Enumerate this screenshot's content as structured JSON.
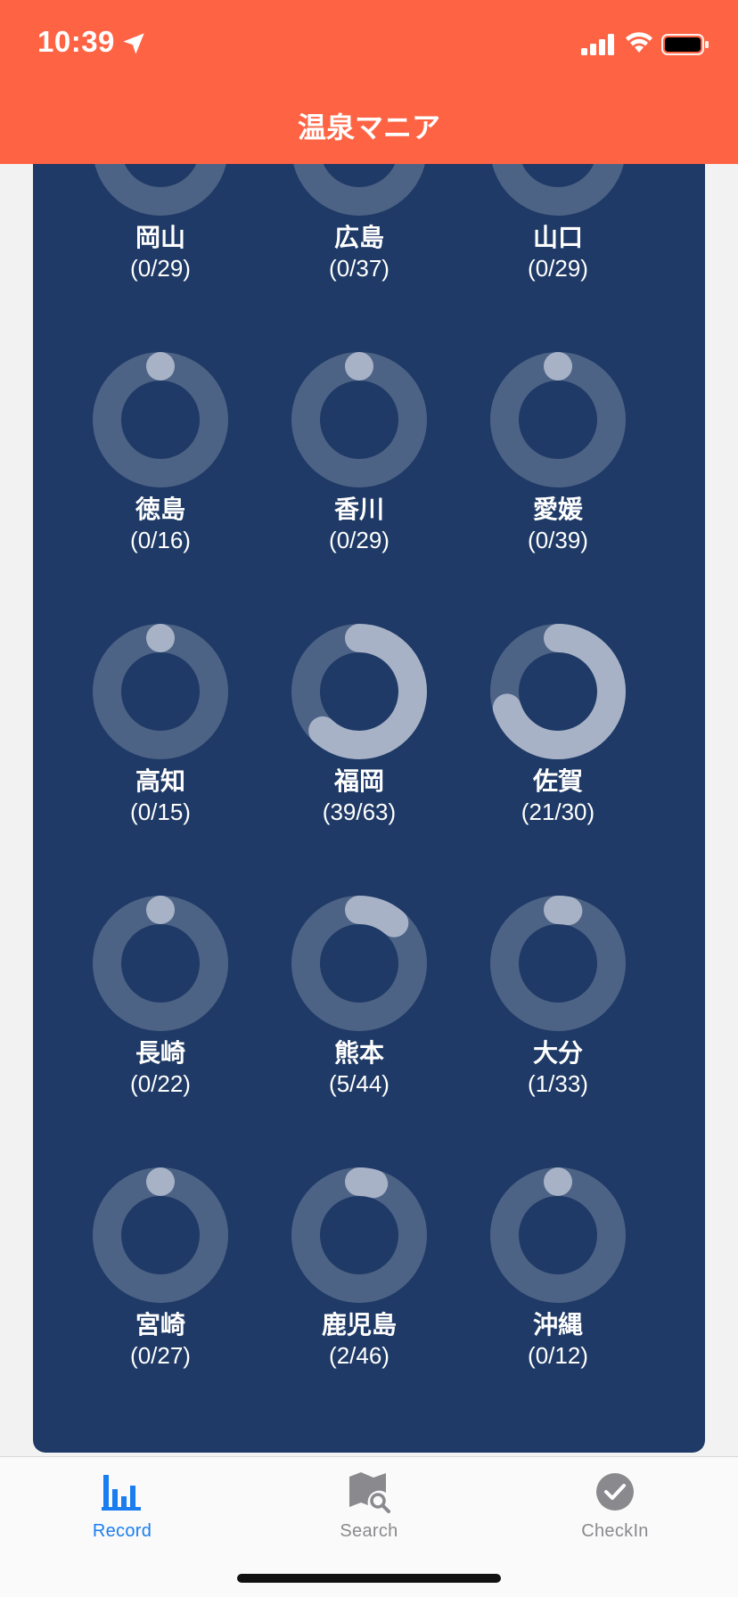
{
  "status_bar": {
    "time": "10:39"
  },
  "app": {
    "title": "温泉マニア"
  },
  "prefectures": [
    {
      "name": "岡山",
      "count": "(0/29)",
      "visited": 0,
      "total": 29
    },
    {
      "name": "広島",
      "count": "(0/37)",
      "visited": 0,
      "total": 37
    },
    {
      "name": "山口",
      "count": "(0/29)",
      "visited": 0,
      "total": 29
    },
    {
      "name": "徳島",
      "count": "(0/16)",
      "visited": 0,
      "total": 16
    },
    {
      "name": "香川",
      "count": "(0/29)",
      "visited": 0,
      "total": 29
    },
    {
      "name": "愛媛",
      "count": "(0/39)",
      "visited": 0,
      "total": 39
    },
    {
      "name": "高知",
      "count": "(0/15)",
      "visited": 0,
      "total": 15
    },
    {
      "name": "福岡",
      "count": "(39/63)",
      "visited": 39,
      "total": 63
    },
    {
      "name": "佐賀",
      "count": "(21/30)",
      "visited": 21,
      "total": 30
    },
    {
      "name": "長崎",
      "count": "(0/22)",
      "visited": 0,
      "total": 22
    },
    {
      "name": "熊本",
      "count": "(5/44)",
      "visited": 5,
      "total": 44
    },
    {
      "name": "大分",
      "count": "(1/33)",
      "visited": 1,
      "total": 33
    },
    {
      "name": "宮崎",
      "count": "(0/27)",
      "visited": 0,
      "total": 27
    },
    {
      "name": "鹿児島",
      "count": "(2/46)",
      "visited": 2,
      "total": 46
    },
    {
      "name": "沖縄",
      "count": "(0/12)",
      "visited": 0,
      "total": 12
    }
  ],
  "colors": {
    "header_bg": "#fe6344",
    "card_bg": "#1f3a66",
    "ring_track": "#4d6385",
    "ring_progress": "#a7b2c7",
    "tab_active": "#1a7ef0",
    "tab_inactive": "#8a8a8e"
  },
  "tabbar": {
    "tabs": [
      {
        "label": "Record",
        "icon": "bar-chart-icon",
        "active": true
      },
      {
        "label": "Search",
        "icon": "map-search-icon",
        "active": false
      },
      {
        "label": "CheckIn",
        "icon": "check-circle-icon",
        "active": false
      }
    ]
  }
}
